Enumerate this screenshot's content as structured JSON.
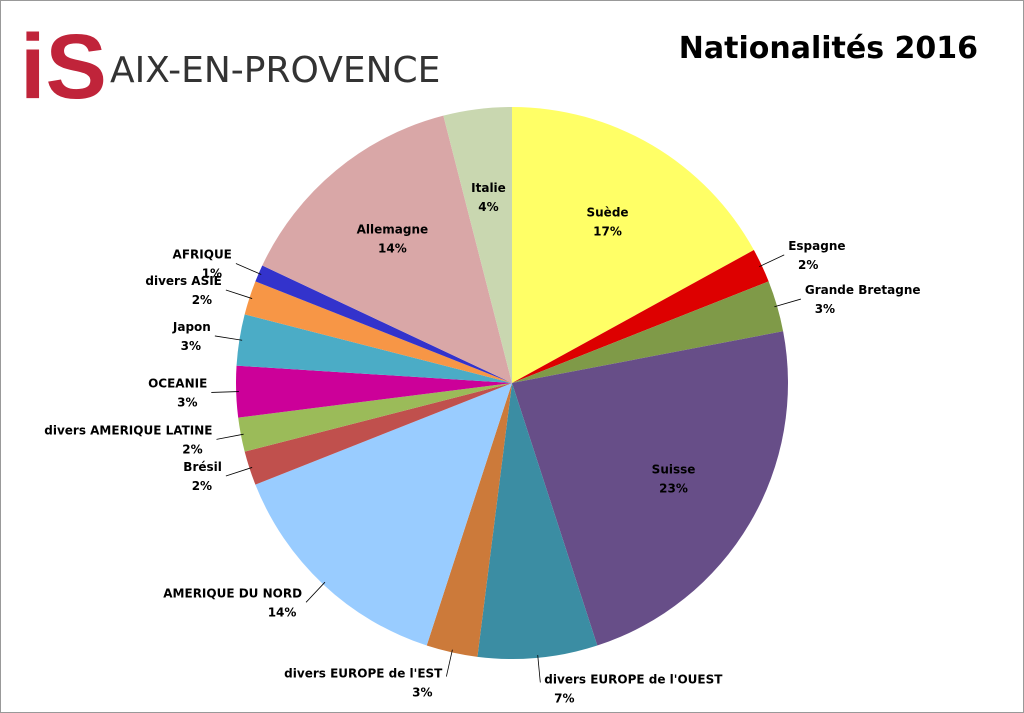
{
  "logo": {
    "mark": "iS",
    "text": "AIX-EN-PROVENCE"
  },
  "chart_data": {
    "type": "pie",
    "title": "Nationalités 2016",
    "categories": [
      "Suède",
      "Espagne",
      "Grande Bretagne",
      "Suisse",
      "divers EUROPE de l'OUEST",
      "divers EUROPE de l'EST",
      "AMERIQUE DU NORD",
      "Brésil",
      "divers AMERIQUE LATINE",
      "OCEANIE",
      "Japon",
      "divers ASIE",
      "AFRIQUE",
      "Allemagne",
      "Italie"
    ],
    "values": [
      17,
      2,
      3,
      23,
      7,
      3,
      14,
      2,
      2,
      3,
      3,
      2,
      1,
      14,
      4
    ],
    "value_labels": [
      "17%",
      "2%",
      "3%",
      "23%",
      "7%",
      "3%",
      "14%",
      "2%",
      "2%",
      "3%",
      "3%",
      "2%",
      "1%",
      "14%",
      "4%"
    ],
    "colors": [
      "#ffff66",
      "#dd0000",
      "#7f9a48",
      "#674e88",
      "#3b8da3",
      "#cc7a3a",
      "#99ccff",
      "#c0504d",
      "#9bbb59",
      "#cc0099",
      "#4bacc6",
      "#f79646",
      "#3333cc",
      "#d9a7a7",
      "#c9d7b0"
    ]
  }
}
